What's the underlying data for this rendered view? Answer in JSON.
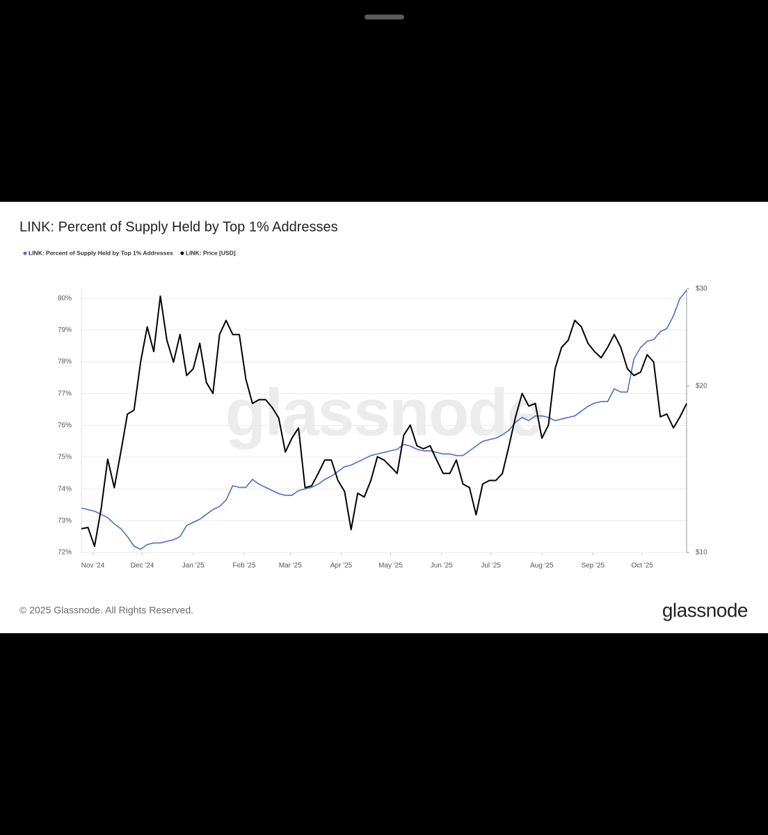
{
  "chart_data": {
    "type": "line",
    "title": "LINK: Percent of Supply Held by Top 1% Addresses",
    "watermark": "glassnode",
    "x": [
      "2024-10-25",
      "2024-10-29",
      "2024-11-02",
      "2024-11-06",
      "2024-11-10",
      "2024-11-14",
      "2024-11-18",
      "2024-11-22",
      "2024-11-26",
      "2024-11-30",
      "2024-12-04",
      "2024-12-08",
      "2024-12-12",
      "2024-12-16",
      "2024-12-20",
      "2024-12-24",
      "2024-12-28",
      "2025-01-01",
      "2025-01-05",
      "2025-01-09",
      "2025-01-13",
      "2025-01-17",
      "2025-01-21",
      "2025-01-25",
      "2025-01-29",
      "2025-02-02",
      "2025-02-06",
      "2025-02-10",
      "2025-02-14",
      "2025-02-18",
      "2025-02-22",
      "2025-02-26",
      "2025-03-02",
      "2025-03-06",
      "2025-03-10",
      "2025-03-14",
      "2025-03-18",
      "2025-03-22",
      "2025-03-26",
      "2025-03-30",
      "2025-04-03",
      "2025-04-07",
      "2025-04-11",
      "2025-04-15",
      "2025-04-19",
      "2025-04-23",
      "2025-04-27",
      "2025-05-01",
      "2025-05-05",
      "2025-05-09",
      "2025-05-13",
      "2025-05-17",
      "2025-05-21",
      "2025-05-25",
      "2025-05-29",
      "2025-06-02",
      "2025-06-06",
      "2025-06-10",
      "2025-06-14",
      "2025-06-18",
      "2025-06-22",
      "2025-06-26",
      "2025-06-30",
      "2025-07-04",
      "2025-07-08",
      "2025-07-12",
      "2025-07-16",
      "2025-07-20",
      "2025-07-24",
      "2025-07-28",
      "2025-08-01",
      "2025-08-05",
      "2025-08-09",
      "2025-08-13",
      "2025-08-17",
      "2025-08-21",
      "2025-08-25",
      "2025-08-29",
      "2025-09-02",
      "2025-09-06",
      "2025-09-10",
      "2025-09-14",
      "2025-09-18",
      "2025-09-22",
      "2025-09-26",
      "2025-09-30",
      "2025-10-04",
      "2025-10-08",
      "2025-10-12",
      "2025-10-16",
      "2025-10-20",
      "2025-10-24",
      "2025-10-28"
    ],
    "series": [
      {
        "name": "LINK: Percent of Supply Held by Top 1% Addresses",
        "color": "#4a6fc4",
        "axis": "y",
        "values": [
          73.4,
          73.35,
          73.3,
          73.2,
          73.1,
          72.9,
          72.75,
          72.5,
          72.2,
          72.1,
          72.25,
          72.3,
          72.3,
          72.35,
          72.4,
          72.5,
          72.85,
          72.95,
          73.05,
          73.2,
          73.35,
          73.45,
          73.65,
          74.1,
          74.05,
          74.05,
          74.3,
          74.15,
          74.05,
          73.95,
          73.85,
          73.8,
          73.8,
          73.95,
          74.0,
          74.05,
          74.15,
          74.3,
          74.4,
          74.55,
          74.7,
          74.75,
          74.85,
          74.95,
          75.05,
          75.1,
          75.15,
          75.2,
          75.25,
          75.4,
          75.35,
          75.25,
          75.2,
          75.2,
          75.15,
          75.1,
          75.1,
          75.05,
          75.05,
          75.2,
          75.35,
          75.5,
          75.55,
          75.6,
          75.7,
          75.85,
          76.1,
          76.25,
          76.15,
          76.3,
          76.3,
          76.25,
          76.15,
          76.2,
          76.25,
          76.3,
          76.45,
          76.6,
          76.7,
          76.75,
          76.75,
          77.15,
          77.05,
          77.05,
          78.1,
          78.45,
          78.65,
          78.7,
          78.95,
          79.05,
          79.45,
          80.0,
          80.25
        ]
      },
      {
        "name": "LINK: Price [USD]",
        "color": "#000000",
        "axis": "y2",
        "values": [
          11.04,
          11.1,
          10.26,
          12.0,
          14.75,
          13.1,
          15.2,
          17.8,
          18.1,
          22.1,
          25.6,
          23.1,
          29.1,
          24.2,
          22.1,
          24.8,
          20.9,
          21.5,
          23.9,
          20.3,
          19.4,
          24.8,
          26.3,
          24.8,
          24.8,
          20.6,
          18.6,
          18.9,
          18.9,
          18.3,
          17.5,
          15.2,
          16.1,
          16.8,
          13.1,
          13.2,
          13.9,
          14.7,
          14.7,
          13.5,
          12.9,
          11.0,
          12.8,
          12.6,
          13.5,
          14.9,
          14.7,
          14.3,
          13.9,
          16.3,
          17.0,
          15.6,
          15.4,
          15.6,
          14.7,
          13.9,
          13.9,
          14.7,
          13.3,
          13.1,
          11.7,
          13.3,
          13.5,
          13.5,
          13.9,
          15.6,
          17.6,
          19.4,
          18.4,
          18.6,
          16.1,
          17.0,
          21.5,
          23.5,
          24.2,
          26.3,
          25.6,
          23.9,
          23.1,
          22.5,
          23.5,
          24.8,
          23.5,
          21.5,
          20.9,
          21.2,
          22.8,
          22.1,
          17.6,
          17.8,
          16.8,
          17.6,
          18.6
        ]
      }
    ],
    "xlim": [
      "2024-10-25",
      "2025-10-28"
    ],
    "xticks": [
      {
        "value": "2024-11",
        "label": "Nov '24"
      },
      {
        "value": "2024-12",
        "label": "Dec '24"
      },
      {
        "value": "2025-01",
        "label": "Jan '25"
      },
      {
        "value": "2025-02",
        "label": "Feb '25"
      },
      {
        "value": "2025-03",
        "label": "Mar '25"
      },
      {
        "value": "2025-04",
        "label": "Apr '25"
      },
      {
        "value": "2025-05",
        "label": "May '25"
      },
      {
        "value": "2025-06",
        "label": "Jun '25"
      },
      {
        "value": "2025-07",
        "label": "Jul '25"
      },
      {
        "value": "2025-08",
        "label": "Aug '25"
      },
      {
        "value": "2025-09",
        "label": "Sep '25"
      },
      {
        "value": "2025-10",
        "label": "Oct '25"
      }
    ],
    "ylim": [
      72,
      80.3
    ],
    "yticks": [
      {
        "value": 72,
        "label": "72%"
      },
      {
        "value": 73,
        "label": "73%"
      },
      {
        "value": 74,
        "label": "74%"
      },
      {
        "value": 75,
        "label": "75%"
      },
      {
        "value": 76,
        "label": "76%"
      },
      {
        "value": 77,
        "label": "77%"
      },
      {
        "value": 78,
        "label": "78%"
      },
      {
        "value": 79,
        "label": "79%"
      },
      {
        "value": 80,
        "label": "80%"
      }
    ],
    "y2lim": [
      10,
      30
    ],
    "y2log": true,
    "y2ticks": [
      {
        "value": 10,
        "label": "$10"
      },
      {
        "value": 20,
        "label": "$20"
      },
      {
        "value": 30,
        "label": "$30"
      }
    ],
    "grid": true,
    "legend": "top-left"
  },
  "footer": {
    "copyright": "© 2025 Glassnode. All Rights Reserved.",
    "logo": "glassnode"
  }
}
